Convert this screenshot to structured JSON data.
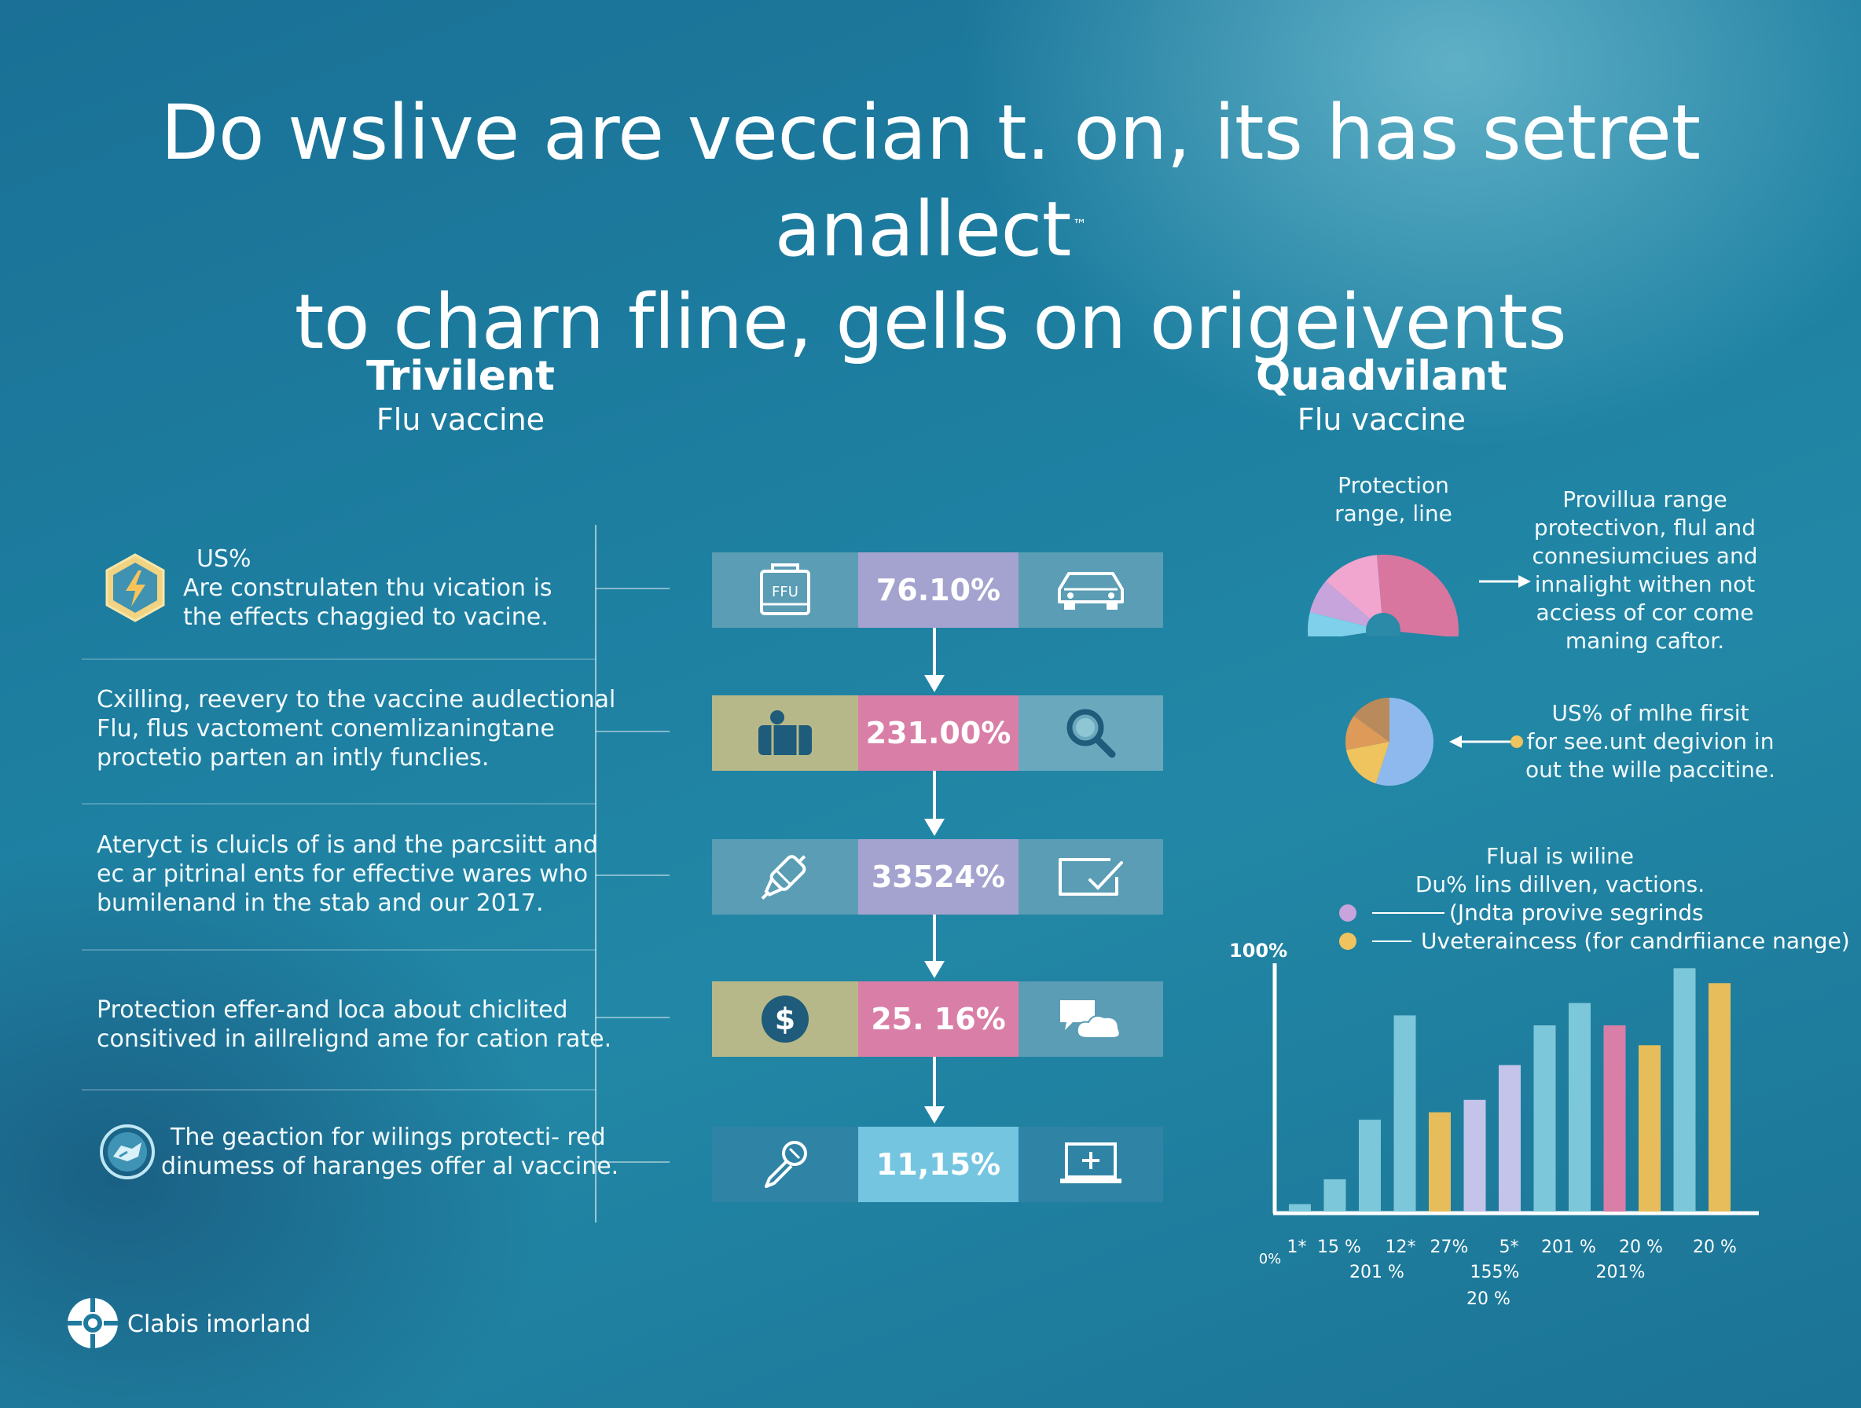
{
  "header": {
    "title_line1": "Do wslive are veccian t. on, its has setret anallect",
    "title_line2": "to charn fline, gells on origeivents",
    "trademark": "™"
  },
  "trivalent": {
    "title": "Trivilent",
    "subtitle": "Flu vaccine",
    "items": [
      {
        "label": "US%",
        "lines": [
          "Are construlaten thu vication is",
          "the effects chaggied to vacine."
        ],
        "icon": "lightning-hexagon-icon"
      },
      {
        "lines": [
          "Cxilling, reevery to the vaccine audlectional",
          "Flu, flus vactoment conemlizaningtane",
          "proctetio parten an intly funclies."
        ]
      },
      {
        "lines": [
          "Ateryct is cluicls of is and the parcsiitt and",
          "ec ar pitrinal ents for effective wares who",
          "bumilenand in the stab and our 2017."
        ]
      },
      {
        "lines": [
          "Protection effer-and loca about chiclited",
          "consitived in aillrelignd ame for cation rate."
        ]
      },
      {
        "lines": [
          "The geaction for wilings protecti- red",
          "dinumess of haranges offer al vaccine."
        ],
        "icon": "shield-circle-icon"
      }
    ]
  },
  "flow": [
    {
      "value": "76.10%",
      "left_icon": "ffu-box-icon",
      "left_icon_text": "FFU",
      "right_icon": "car-icon",
      "left_bg": "#5a9db5",
      "mid_bg": "#a4a3cf",
      "right_bg": "#5a9db5"
    },
    {
      "value": "231.00%",
      "left_icon": "briefcase-icon",
      "right_icon": "magnifier-icon",
      "left_bg": "#b7b889",
      "mid_bg": "#d97fa7",
      "right_bg": "#6aa9bd"
    },
    {
      "value": "33524%",
      "left_icon": "syringe-icon",
      "right_icon": "check-box-icon",
      "left_bg": "#5a9db5",
      "mid_bg": "#a4a3cf",
      "right_bg": "#5a9db5"
    },
    {
      "value": "25. 16%",
      "left_icon": "dollar-icon",
      "right_icon": "cloud-chat-icon",
      "left_bg": "#b7b889",
      "mid_bg": "#d97fa7",
      "right_bg": "#5a9db5"
    },
    {
      "value": "11,15%",
      "left_icon": "dropper-icon",
      "right_icon": "laptop-plus-icon",
      "left_bg": "#2f83a5",
      "mid_bg": "#74c5e0",
      "right_bg": "#2f83a5"
    }
  ],
  "quadrivalent": {
    "title": "Quadvilant",
    "subtitle": "Flu vaccine",
    "pie1_label_lines": [
      "Protection",
      "range, line"
    ],
    "pie1_note_lines": [
      "Provillua range",
      "protectivon, flul and",
      "connesiumciues and",
      "innalight withen not",
      "acciess of cor come",
      "maning caftor."
    ],
    "pie2_note_lines": [
      "US% of mlhe firsit",
      "for see.unt degivion in",
      "out the wille paccitine."
    ],
    "chart_note_lines": [
      "Flual is wiline",
      "Du% lins dillven, vactions."
    ],
    "legend": [
      {
        "label": "(Jndta provive segrinds",
        "color": "#c7a4dc"
      },
      {
        "label": "Uveteraincess (for candrfiiance nange)",
        "color": "#efc35d"
      }
    ]
  },
  "colors": {
    "teal_bar": "#7dc7da",
    "lavender_bar": "#c4c3ea",
    "pink_bar": "#d97fa7",
    "yellow_bar": "#e7bd5c",
    "pie_pink": "#f0a6cf",
    "pie_rose": "#d8769f",
    "pie_lavender": "#c7a4dc",
    "pie_sky": "#7fd0ea",
    "pie_blue": "#8db9ef",
    "pie_gold": "#efc35d",
    "pie_orange": "#dd9a58",
    "pie_brown": "#b98a5b"
  },
  "chart_data": {
    "type": "bar",
    "y_top_label": "100%",
    "origin_label": "0%",
    "ylim": [
      0,
      100
    ],
    "values": [
      3,
      13,
      37,
      79,
      40,
      45,
      59,
      75,
      84,
      75,
      67,
      98,
      92
    ],
    "colors": [
      "#7dc7da",
      "#7dc7da",
      "#7dc7da",
      "#7dc7da",
      "#e7bd5c",
      "#c4c3ea",
      "#c4c3ea",
      "#7dc7da",
      "#7dc7da",
      "#d97fa7",
      "#e7bd5c",
      "#7dc7da",
      "#e7bd5c"
    ],
    "tick_labels_row1": [
      "1*",
      "15 %",
      "12*",
      "27%",
      "5*",
      "201 %",
      "20 %",
      "20 %"
    ],
    "tick_labels_row2": [
      "201 %",
      "155%",
      "201%"
    ],
    "tick_labels_row3": [
      "20 %"
    ]
  },
  "pie_data": [
    {
      "name": "pie1",
      "type": "semi-pie",
      "values": [
        45,
        20,
        12,
        10
      ]
    },
    {
      "name": "pie2",
      "type": "pie",
      "values": [
        55,
        17,
        13,
        15
      ]
    }
  ],
  "footer": {
    "brand": "Clabis imorland"
  }
}
